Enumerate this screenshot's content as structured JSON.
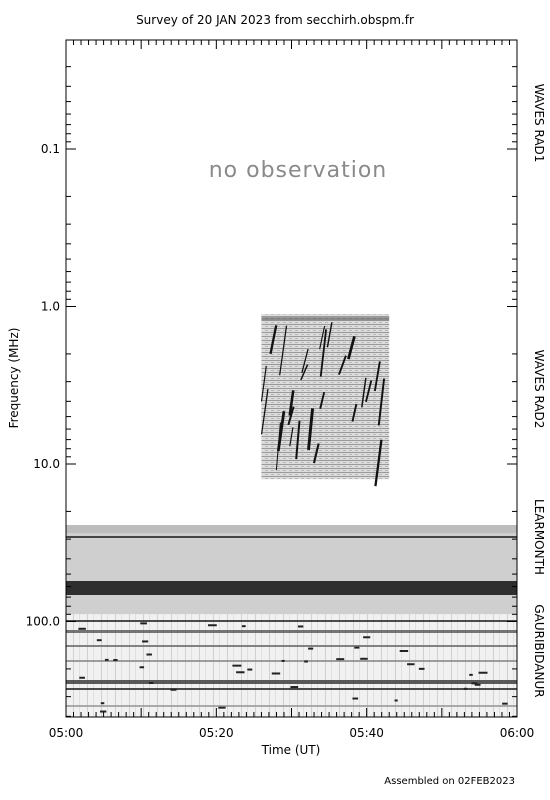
{
  "chart_data": {
    "type": "heatmap",
    "title": "Survey of 20 JAN 2023 from secchirh.obspm.fr",
    "xlabel": "Time (UT)",
    "ylabel": "Frequency (MHz)",
    "x_range": [
      "05:00",
      "06:00"
    ],
    "x_ticks": [
      "05:00",
      "05:20",
      "05:40",
      "06:00"
    ],
    "y_scale": "log",
    "y_range": [
      0.02,
      400
    ],
    "y_ticks": [
      "0.1",
      "1.0",
      "10.0",
      "100.0"
    ],
    "y_tick_values": [
      0.1,
      1.0,
      10.0,
      100.0
    ],
    "instruments": [
      {
        "name": "WAVES RAD1",
        "freq_range_mhz": [
          0.02,
          1.04
        ]
      },
      {
        "name": "WAVES RAD2",
        "freq_range_mhz": [
          1.04,
          16.0
        ]
      },
      {
        "name": "LEARMONTH",
        "freq_range_mhz": [
          25,
          90
        ]
      },
      {
        "name": "GAURIBIDANUR",
        "freq_range_mhz": [
          90,
          400
        ]
      }
    ],
    "annotation": "no observation",
    "rad2_data_window": {
      "time_start": "05:26",
      "time_end": "05:43",
      "freq_range_mhz": [
        1.04,
        12.5
      ]
    },
    "footer": "Assembled on 02FEB2023"
  }
}
